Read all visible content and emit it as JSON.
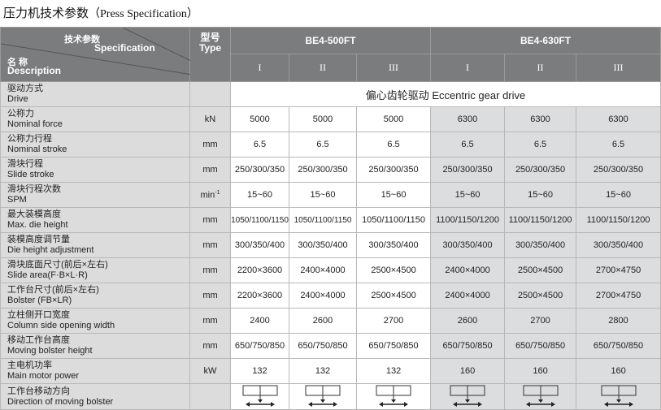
{
  "title": {
    "zh": "压力机技术参数",
    "en": "（Press Specification）"
  },
  "header": {
    "spec_zh": "技术参数",
    "spec_en": "Specification",
    "name_zh": "名 称",
    "name_en": "Description",
    "type_zh": "型号",
    "type_en": "Type",
    "models": [
      "BE4-500FT",
      "BE4-630FT"
    ],
    "variants": [
      "I",
      "II",
      "III",
      "I",
      "II",
      "III"
    ]
  },
  "drive": {
    "zh": "驱动方式",
    "en": "Drive",
    "value": "偏心齿轮驱动   Eccentric gear drive"
  },
  "rows": [
    {
      "zh": "公称力",
      "en": "Nominal force",
      "unit": "kN",
      "values": [
        "5000",
        "5000",
        "5000",
        "6300",
        "6300",
        "6300"
      ]
    },
    {
      "zh": "公称力行程",
      "en": "Nominal stroke",
      "unit": "mm",
      "values": [
        "6.5",
        "6.5",
        "6.5",
        "6.5",
        "6.5",
        "6.5"
      ]
    },
    {
      "zh": "滑块行程",
      "en": "Slide stroke",
      "unit": "mm",
      "values": [
        "250/300/350",
        "250/300/350",
        "250/300/350",
        "250/300/350",
        "250/300/350",
        "250/300/350"
      ]
    },
    {
      "zh": "滑块行程次数",
      "en": "SPM",
      "unit": "min",
      "unit_sup": "-1",
      "values": [
        "15~60",
        "15~60",
        "15~60",
        "15~60",
        "15~60",
        "15~60"
      ]
    },
    {
      "zh": "最大装模高度",
      "en": "Max. die height",
      "unit": "mm",
      "values": [
        "1050/1100/1150",
        "1050/1100/1150",
        "1050/1100/1150",
        "1100/1150/1200",
        "1100/1150/1200",
        "1100/1150/1200"
      ]
    },
    {
      "zh": "装模高度调节量",
      "en": "Die height adjustment",
      "unit": "mm",
      "values": [
        "300/350/400",
        "300/350/400",
        "300/350/400",
        "300/350/400",
        "300/350/400",
        "300/350/400"
      ]
    },
    {
      "zh": "滑块底面尺寸(前后×左右)",
      "en": "Slide area(F·B×L·R)",
      "unit": "mm",
      "values": [
        "2200×3600",
        "2400×4000",
        "2500×4500",
        "2400×4000",
        "2500×4500",
        "2700×4750"
      ]
    },
    {
      "zh": "工作台尺寸(前后×左右)",
      "en": "Bolster (FB×LR)",
      "unit": "mm",
      "values": [
        "2200×3600",
        "2400×4000",
        "2500×4500",
        "2400×4000",
        "2500×4500",
        "2700×4750"
      ]
    },
    {
      "zh": "立柱侧开口宽度",
      "en": "Column side opening width",
      "unit": "mm",
      "values": [
        "2400",
        "2600",
        "2700",
        "2600",
        "2700",
        "2800"
      ]
    },
    {
      "zh": "移动工作台高度",
      "en": "Moving bolster height",
      "unit": "mm",
      "values": [
        "650/750/850",
        "650/750/850",
        "650/750/850",
        "650/750/850",
        "650/750/850",
        "650/750/850"
      ]
    },
    {
      "zh": "主电机功率",
      "en": "Main motor power",
      "unit": "kW",
      "values": [
        "132",
        "132",
        "132",
        "160",
        "160",
        "160"
      ]
    }
  ],
  "bolster_dir": {
    "zh": "工作台移动方向",
    "en": "Direction of moving bolster",
    "icon": "bolster-direction-icon"
  }
}
